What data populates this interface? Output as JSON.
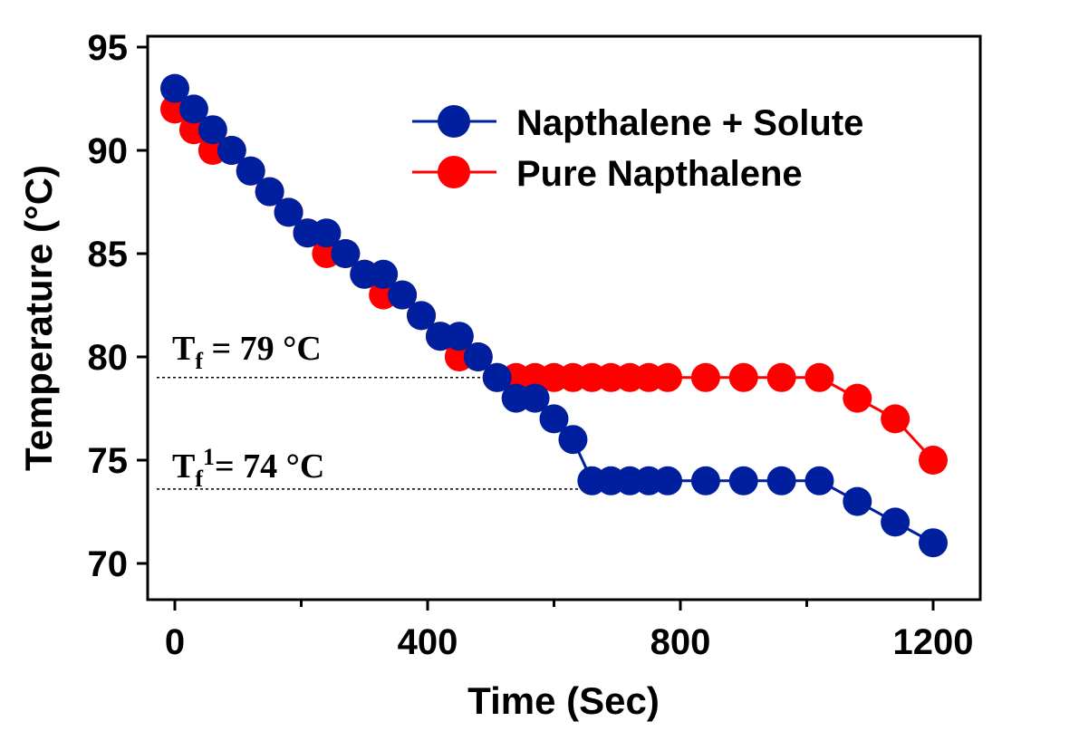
{
  "chart_data": {
    "type": "line",
    "xlabel": "Time (Sec)",
    "ylabel": "Temperature (°C)",
    "xlim": [
      -20,
      1270
    ],
    "ylim": [
      68,
      96
    ],
    "x_ticks": [
      0,
      400,
      800,
      1200
    ],
    "x_tick_labels": [
      "0",
      "400",
      "800",
      "1200"
    ],
    "x_minor_ticks": [
      200,
      600,
      1000
    ],
    "y_ticks": [
      70,
      75,
      80,
      85,
      90,
      95
    ],
    "y_tick_labels": [
      "70",
      "75",
      "80",
      "85",
      "90",
      "95"
    ],
    "grid": false,
    "legend_position": "top-right",
    "series": [
      {
        "name": "Pure Napthalene",
        "color": "#ff0000",
        "x": [
          0,
          30,
          60,
          90,
          120,
          150,
          180,
          210,
          240,
          270,
          300,
          330,
          360,
          390,
          420,
          450,
          480,
          510,
          540,
          570,
          600,
          630,
          660,
          690,
          720,
          750,
          780,
          840,
          900,
          960,
          1020,
          1080,
          1140,
          1200
        ],
        "y": [
          92,
          91,
          90,
          90,
          89,
          88,
          87,
          86,
          85,
          85,
          84,
          83,
          83,
          82,
          81,
          80,
          80,
          79,
          79,
          79,
          79,
          79,
          79,
          79,
          79,
          79,
          79,
          79,
          79,
          79,
          79,
          78,
          77,
          75
        ]
      },
      {
        "name": "Napthalene + Solute",
        "color": "#001f9e",
        "x": [
          0,
          30,
          60,
          90,
          120,
          150,
          180,
          210,
          240,
          270,
          300,
          330,
          360,
          390,
          420,
          450,
          480,
          510,
          540,
          570,
          600,
          630,
          660,
          690,
          720,
          750,
          780,
          840,
          900,
          960,
          1020,
          1080,
          1140,
          1200
        ],
        "y": [
          93,
          92,
          91,
          90,
          89,
          88,
          87,
          86,
          86,
          85,
          84,
          84,
          83,
          82,
          81,
          81,
          80,
          79,
          78,
          78,
          77,
          76,
          74,
          74,
          74,
          74,
          74,
          74,
          74,
          74,
          74,
          73,
          72,
          71
        ]
      }
    ],
    "legend_order": [
      "Napthalene + Solute",
      "Pure Napthalene"
    ],
    "annotations": [
      {
        "base": "T",
        "sub": "f",
        "sup": "",
        "rest": " = 79 °C",
        "value": 79
      },
      {
        "base": "T",
        "sub": "f",
        "sup": "1",
        "rest": "= 74 °C",
        "value": 73.6
      }
    ]
  }
}
